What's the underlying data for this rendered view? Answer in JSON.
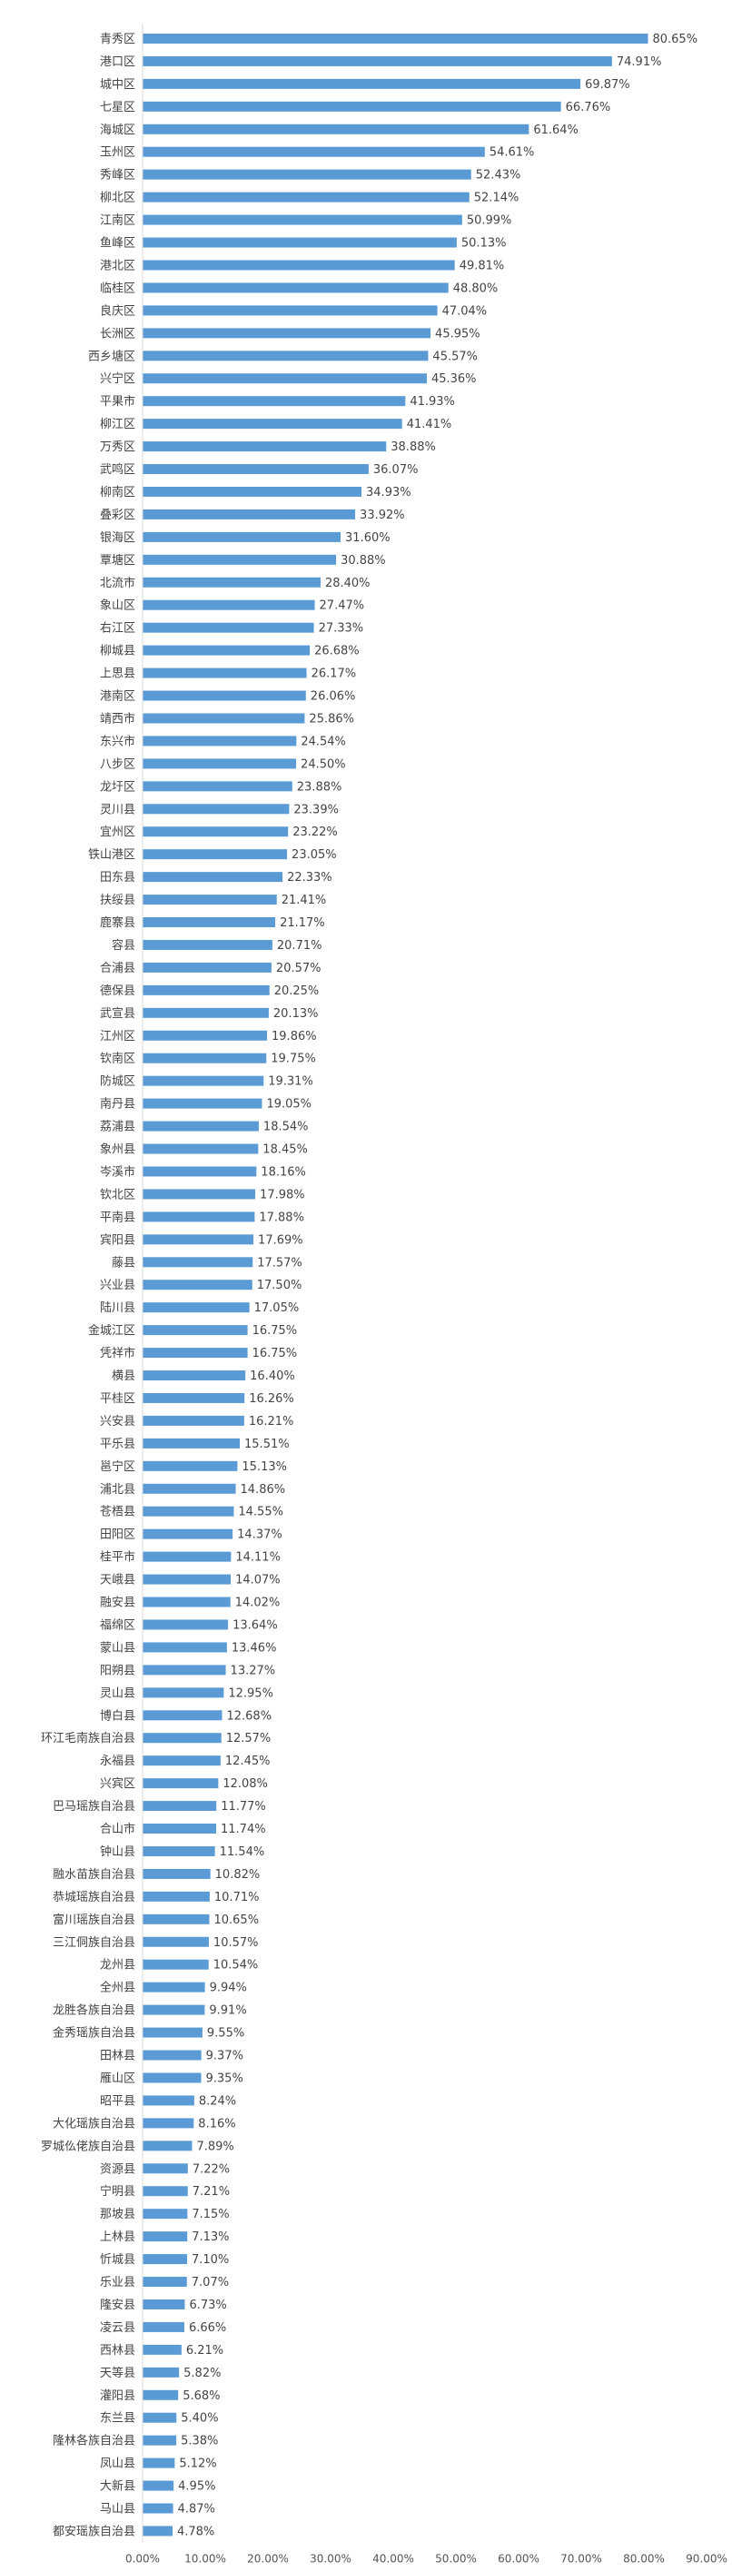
{
  "chart_data": {
    "type": "bar",
    "orientation": "horizontal",
    "title": "",
    "xlabel": "",
    "ylabel": "",
    "xlim": [
      0,
      90
    ],
    "x_ticks": [
      "0.00%",
      "10.00%",
      "20.00%",
      "30.00%",
      "40.00%",
      "50.00%",
      "60.00%",
      "70.00%",
      "80.00%",
      "90.00%"
    ],
    "grid": false,
    "bar_color": "#5b9bd5",
    "categories": [
      "青秀区",
      "港口区",
      "城中区",
      "七星区",
      "海城区",
      "玉州区",
      "秀峰区",
      "柳北区",
      "江南区",
      "鱼峰区",
      "港北区",
      "临桂区",
      "良庆区",
      "长洲区",
      "西乡塘区",
      "兴宁区",
      "平果市",
      "柳江区",
      "万秀区",
      "武鸣区",
      "柳南区",
      "叠彩区",
      "银海区",
      "覃塘区",
      "北流市",
      "象山区",
      "右江区",
      "柳城县",
      "上思县",
      "港南区",
      "靖西市",
      "东兴市",
      "八步区",
      "龙圩区",
      "灵川县",
      "宜州区",
      "铁山港区",
      "田东县",
      "扶绥县",
      "鹿寨县",
      "容县",
      "合浦县",
      "德保县",
      "武宣县",
      "江州区",
      "钦南区",
      "防城区",
      "南丹县",
      "荔浦县",
      "象州县",
      "岑溪市",
      "钦北区",
      "平南县",
      "宾阳县",
      "藤县",
      "兴业县",
      "陆川县",
      "金城江区",
      "凭祥市",
      "横县",
      "平桂区",
      "兴安县",
      "平乐县",
      "邕宁区",
      "浦北县",
      "苍梧县",
      "田阳区",
      "桂平市",
      "天峨县",
      "融安县",
      "福绵区",
      "蒙山县",
      "阳朔县",
      "灵山县",
      "博白县",
      "环江毛南族自治县",
      "永福县",
      "兴宾区",
      "巴马瑶族自治县",
      "合山市",
      "钟山县",
      "融水苗族自治县",
      "恭城瑶族自治县",
      "富川瑶族自治县",
      "三江侗族自治县",
      "龙州县",
      "全州县",
      "龙胜各族自治县",
      "金秀瑶族自治县",
      "田林县",
      "雁山区",
      "昭平县",
      "大化瑶族自治县",
      "罗城仫佬族自治县",
      "资源县",
      "宁明县",
      "那坡县",
      "上林县",
      "忻城县",
      "乐业县",
      "隆安县",
      "凌云县",
      "西林县",
      "天等县",
      "灌阳县",
      "东兰县",
      "隆林各族自治县",
      "凤山县",
      "大新县",
      "马山县",
      "都安瑶族自治县"
    ],
    "values": [
      80.65,
      74.91,
      69.87,
      66.76,
      61.64,
      54.61,
      52.43,
      52.14,
      50.99,
      50.13,
      49.81,
      48.8,
      47.04,
      45.95,
      45.57,
      45.36,
      41.93,
      41.41,
      38.88,
      36.07,
      34.93,
      33.92,
      31.6,
      30.88,
      28.4,
      27.47,
      27.33,
      26.68,
      26.17,
      26.06,
      25.86,
      24.54,
      24.5,
      23.88,
      23.39,
      23.22,
      23.05,
      22.33,
      21.41,
      21.17,
      20.71,
      20.57,
      20.25,
      20.13,
      19.86,
      19.75,
      19.31,
      19.05,
      18.54,
      18.45,
      18.16,
      17.98,
      17.88,
      17.69,
      17.57,
      17.5,
      17.05,
      16.75,
      16.75,
      16.4,
      16.26,
      16.21,
      15.51,
      15.13,
      14.86,
      14.55,
      14.37,
      14.11,
      14.07,
      14.02,
      13.64,
      13.46,
      13.27,
      12.95,
      12.68,
      12.57,
      12.45,
      12.08,
      11.77,
      11.74,
      11.54,
      10.82,
      10.71,
      10.65,
      10.57,
      10.54,
      9.94,
      9.91,
      9.55,
      9.37,
      9.35,
      8.24,
      8.16,
      7.89,
      7.22,
      7.21,
      7.15,
      7.13,
      7.1,
      7.07,
      6.73,
      6.66,
      6.21,
      5.82,
      5.68,
      5.4,
      5.38,
      5.12,
      4.95,
      4.87,
      4.78
    ],
    "value_labels": [
      "80.65%",
      "74.91%",
      "69.87%",
      "66.76%",
      "61.64%",
      "54.61%",
      "52.43%",
      "52.14%",
      "50.99%",
      "50.13%",
      "49.81%",
      "48.80%",
      "47.04%",
      "45.95%",
      "45.57%",
      "45.36%",
      "41.93%",
      "41.41%",
      "38.88%",
      "36.07%",
      "34.93%",
      "33.92%",
      "31.60%",
      "30.88%",
      "28.40%",
      "27.47%",
      "27.33%",
      "26.68%",
      "26.17%",
      "26.06%",
      "25.86%",
      "24.54%",
      "24.50%",
      "23.88%",
      "23.39%",
      "23.22%",
      "23.05%",
      "22.33%",
      "21.41%",
      "21.17%",
      "20.71%",
      "20.57%",
      "20.25%",
      "20.13%",
      "19.86%",
      "19.75%",
      "19.31%",
      "19.05%",
      "18.54%",
      "18.45%",
      "18.16%",
      "17.98%",
      "17.88%",
      "17.69%",
      "17.57%",
      "17.50%",
      "17.05%",
      "16.75%",
      "16.75%",
      "16.40%",
      "16.26%",
      "16.21%",
      "15.51%",
      "15.13%",
      "14.86%",
      "14.55%",
      "14.37%",
      "14.11%",
      "14.07%",
      "14.02%",
      "13.64%",
      "13.46%",
      "13.27%",
      "12.95%",
      "12.68%",
      "12.57%",
      "12.45%",
      "12.08%",
      "11.77%",
      "11.74%",
      "11.54%",
      "10.82%",
      "10.71%",
      "10.65%",
      "10.57%",
      "10.54%",
      "9.94%",
      "9.91%",
      "9.55%",
      "9.37%",
      "9.35%",
      "8.24%",
      "8.16%",
      "7.89%",
      "7.22%",
      "7.21%",
      "7.15%",
      "7.13%",
      "7.10%",
      "7.07%",
      "6.73%",
      "6.66%",
      "6.21%",
      "5.82%",
      "5.68%",
      "5.40%",
      "5.38%",
      "5.12%",
      "4.95%",
      "4.87%",
      "4.78%"
    ]
  }
}
